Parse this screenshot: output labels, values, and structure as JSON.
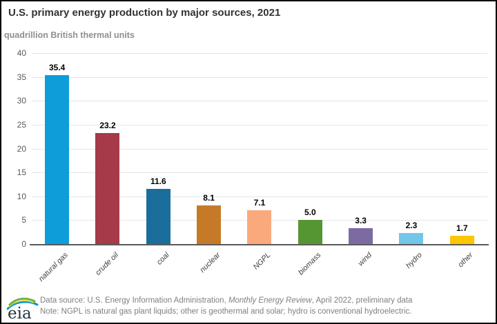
{
  "header": {
    "title": "U.S. primary energy production by major sources, 2021",
    "subtitle": "quadrillion British thermal units"
  },
  "chart_data": {
    "type": "bar",
    "title": "U.S. primary energy production by major sources, 2021",
    "ylabel": "quadrillion British thermal units",
    "xlabel": "",
    "categories": [
      "natural gas",
      "crude oil",
      "coal",
      "nuclear",
      "NGPL",
      "biomass",
      "wind",
      "hydro",
      "other"
    ],
    "values": [
      35.4,
      23.2,
      11.6,
      8.1,
      7.1,
      5.0,
      3.3,
      2.3,
      1.7
    ],
    "bar_colors": [
      "#0d9dd9",
      "#a63a49",
      "#1b6e9c",
      "#c67a28",
      "#faa97c",
      "#569632",
      "#7c6ba3",
      "#72c6ea",
      "#fec503"
    ],
    "ylim": [
      0,
      40
    ],
    "yticks": [
      0,
      5,
      10,
      15,
      20,
      25,
      30,
      35,
      40
    ],
    "grid": true,
    "legend": false,
    "value_label_decimals": 1
  },
  "footer": {
    "logo_text": "eia",
    "source_prefix": "Data source: U.S. Energy Information Administration, ",
    "source_italic": "Monthly Energy Review",
    "source_suffix": ", April 2022, preliminary data",
    "note": "Note: NGPL is natural gas plant liquids; other is geothermal and solar; hydro is conventional hydroelectric."
  },
  "colors": {
    "title_text": "#333333",
    "subtitle_text": "#8f8f8f",
    "axis_line": "#595959",
    "gridline": "#e4e4e4",
    "footer_text": "#7f7f7f",
    "logo_blue": "#0096d7",
    "logo_green": "#6cb33f",
    "logo_yellow": "#f2ca13"
  }
}
